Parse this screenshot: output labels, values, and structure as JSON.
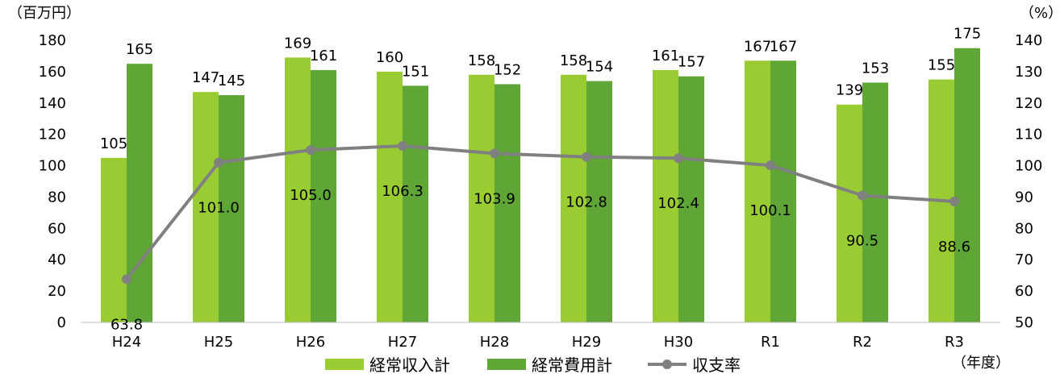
{
  "chart_data": {
    "type": "bar",
    "categories": [
      "H24",
      "H25",
      "H26",
      "H27",
      "H28",
      "H29",
      "H30",
      "R1",
      "R2",
      "R3"
    ],
    "series": [
      {
        "name": "経常収入計",
        "kind": "bar",
        "axis": "left",
        "color": "#99cc33",
        "values": [
          105,
          147,
          169,
          160,
          158,
          158,
          161,
          167,
          139,
          155
        ]
      },
      {
        "name": "経常費用計",
        "kind": "bar",
        "axis": "left",
        "color": "#5fa637",
        "values": [
          165,
          145,
          161,
          151,
          152,
          154,
          157,
          167,
          153,
          175
        ]
      },
      {
        "name": "収支率",
        "kind": "line",
        "axis": "right",
        "color": "#808080",
        "values": [
          63.8,
          101.0,
          105.0,
          106.3,
          103.9,
          102.8,
          102.4,
          100.1,
          90.5,
          88.6
        ]
      }
    ],
    "y_left": {
      "unit_label": "（百万円）",
      "ylim": [
        0,
        180
      ],
      "ticks": [
        "0",
        "20",
        "40",
        "60",
        "80",
        "100",
        "120",
        "140",
        "160",
        "180"
      ]
    },
    "y_right": {
      "unit_label": "（%）",
      "ylim": [
        50,
        140
      ],
      "ticks": [
        "50",
        "60",
        "70",
        "80",
        "90",
        "100",
        "110",
        "120",
        "130",
        "140"
      ]
    },
    "x_unit_label": "（年度）",
    "grid": false,
    "legend_position": "bottom"
  }
}
